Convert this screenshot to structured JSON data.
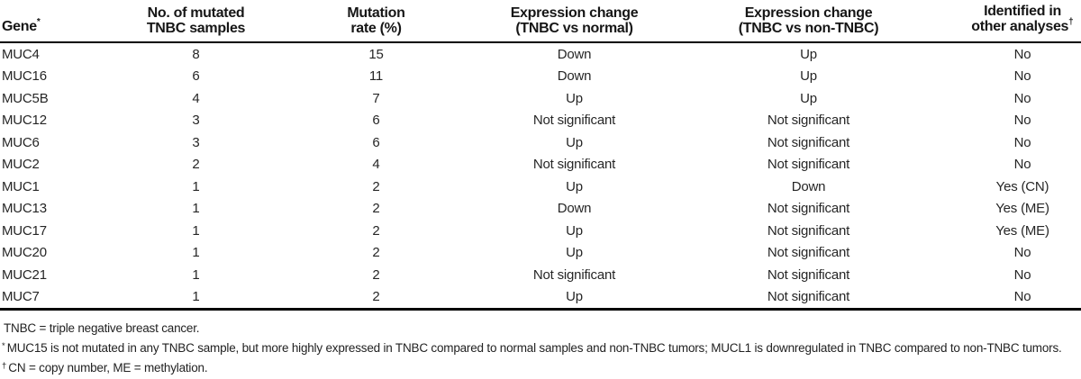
{
  "table": {
    "columns": [
      {
        "id": "gene",
        "align": "left",
        "sup": "*",
        "label_lines": [
          "Gene"
        ]
      },
      {
        "id": "samples",
        "align": "center",
        "sup": "",
        "label_lines": [
          "No. of mutated",
          "TNBC samples"
        ]
      },
      {
        "id": "rate",
        "align": "center",
        "sup": "",
        "label_lines": [
          "Mutation",
          "rate (%)"
        ]
      },
      {
        "id": "expr-normal",
        "align": "center",
        "sup": "",
        "label_lines": [
          "Expression change",
          "(TNBC vs normal)"
        ]
      },
      {
        "id": "expr-nontnbc",
        "align": "center",
        "sup": "",
        "label_lines": [
          "Expression change",
          "(TNBC vs non-TNBC)"
        ]
      },
      {
        "id": "other-analyses",
        "align": "center",
        "sup": "†",
        "label_lines": [
          "Identified in",
          "other analyses"
        ]
      }
    ],
    "rows": [
      [
        "MUC4",
        "8",
        "15",
        "Down",
        "Up",
        "No"
      ],
      [
        "MUC16",
        "6",
        "11",
        "Down",
        "Up",
        "No"
      ],
      [
        "MUC5B",
        "4",
        "7",
        "Up",
        "Up",
        "No"
      ],
      [
        "MUC12",
        "3",
        "6",
        "Not significant",
        "Not significant",
        "No"
      ],
      [
        "MUC6",
        "3",
        "6",
        "Up",
        "Not significant",
        "No"
      ],
      [
        "MUC2",
        "2",
        "4",
        "Not significant",
        "Not significant",
        "No"
      ],
      [
        "MUC1",
        "1",
        "2",
        "Up",
        "Down",
        "Yes (CN)"
      ],
      [
        "MUC13",
        "1",
        "2",
        "Down",
        "Not significant",
        "Yes (ME)"
      ],
      [
        "MUC17",
        "1",
        "2",
        "Up",
        "Not significant",
        "Yes (ME)"
      ],
      [
        "MUC20",
        "1",
        "2",
        "Up",
        "Not significant",
        "No"
      ],
      [
        "MUC21",
        "1",
        "2",
        "Not significant",
        "Not significant",
        "No"
      ],
      [
        "MUC7",
        "1",
        "2",
        "Up",
        "Not significant",
        "No"
      ]
    ]
  },
  "footnotes": [
    {
      "marker": "",
      "text": "TNBC = triple negative breast cancer."
    },
    {
      "marker": "*",
      "text": "MUC15 is not mutated in any TNBC sample, but more highly expressed in TNBC compared to normal samples and non-TNBC tumors; MUCL1 is downregulated in TNBC compared to non-TNBC tumors."
    },
    {
      "marker": "†",
      "text": "CN = copy number, ME = methylation."
    }
  ],
  "colors": {
    "text": "#1b1b1b",
    "rule": "#000000",
    "background": "#ffffff"
  }
}
